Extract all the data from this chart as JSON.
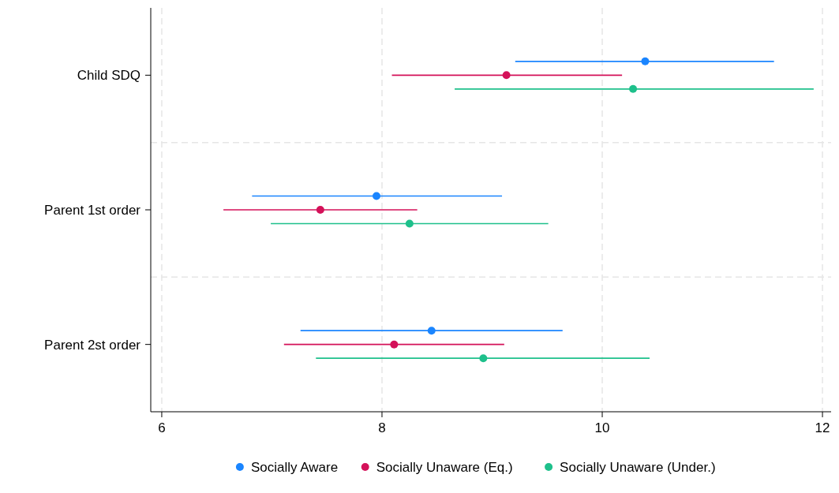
{
  "chart_data": {
    "type": "scatter",
    "orientation": "horizontal",
    "categories": [
      "Child SDQ",
      "Parent 1st order",
      "Parent 2st order"
    ],
    "series": [
      {
        "name": "Socially Aware",
        "color": "#1a85ff",
        "values": [
          10.39,
          7.95,
          8.45
        ],
        "errors": [
          [
            9.21,
            11.56
          ],
          [
            6.82,
            9.09
          ],
          [
            7.26,
            9.64
          ]
        ]
      },
      {
        "name": "Socially Unaware (Eq.)",
        "color": "#d41159",
        "values": [
          9.13,
          7.44,
          8.11
        ],
        "errors": [
          [
            8.09,
            10.18
          ],
          [
            6.56,
            8.32
          ],
          [
            7.11,
            9.11
          ]
        ]
      },
      {
        "name": "Socially Unaware (Under.)",
        "color": "#1ec08b",
        "values": [
          10.28,
          8.25,
          8.92
        ],
        "errors": [
          [
            8.66,
            11.92
          ],
          [
            6.99,
            9.51
          ],
          [
            7.4,
            10.43
          ]
        ]
      }
    ],
    "xlim": [
      5.9,
      12.1
    ],
    "xticks": [
      6,
      8,
      10,
      12
    ],
    "grid": true,
    "legend": "bottom",
    "marker": "circle"
  }
}
